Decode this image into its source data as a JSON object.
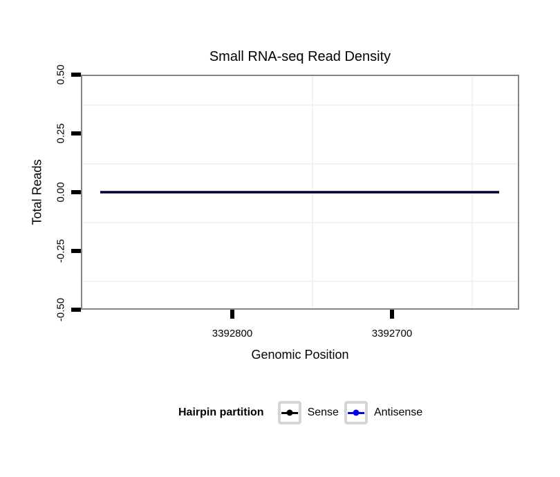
{
  "title": "Small RNA-seq Read Density",
  "axes": {
    "y": {
      "label": "Total Reads",
      "ticks": [
        "0.50",
        "0.25",
        "0.00",
        "-0.25",
        "-0.50"
      ]
    },
    "x": {
      "label": "Genomic Position",
      "ticks": [
        "3392800",
        "3392700"
      ]
    }
  },
  "legend": {
    "title": "Hairpin partition",
    "items": [
      {
        "label": "Sense",
        "color": "#000000"
      },
      {
        "label": "Antisense",
        "color": "#0000ee"
      }
    ]
  },
  "colors": {
    "sense_line": "#000000",
    "antisense_line": "#0000ee",
    "overlap_line_edge": "#32329b",
    "panel_border": "#858585",
    "gridline": "#f3f3f3",
    "legend_key_border": "#d4d4d4",
    "background": "#ffffff",
    "text": "#000000"
  },
  "chart_data": {
    "type": "line",
    "title": "Small RNA-seq Read Density",
    "xlabel": "Genomic Position",
    "ylabel": "Total Reads",
    "x_axis": {
      "reversed": true,
      "tick_values": [
        3392800,
        3392700
      ],
      "approx_range": [
        3392894,
        3392621
      ]
    },
    "ylim": [
      -0.5,
      0.5
    ],
    "y_tick_values": [
      0.5,
      0.25,
      0.0,
      -0.25,
      -0.5
    ],
    "grid": "faint minor gridlines, white background",
    "legend_position": "bottom",
    "legend_title": "Hairpin partition",
    "series": [
      {
        "name": "Sense",
        "color": "#000000",
        "x": [
          3392883,
          3392633
        ],
        "y": [
          0,
          0
        ]
      },
      {
        "name": "Antisense",
        "color": "#0000ee",
        "x": [
          3392883,
          3392633
        ],
        "y": [
          0,
          0
        ]
      }
    ],
    "note": "Both series are flat at y=0 across the hairpin region; lines overlap exactly"
  }
}
